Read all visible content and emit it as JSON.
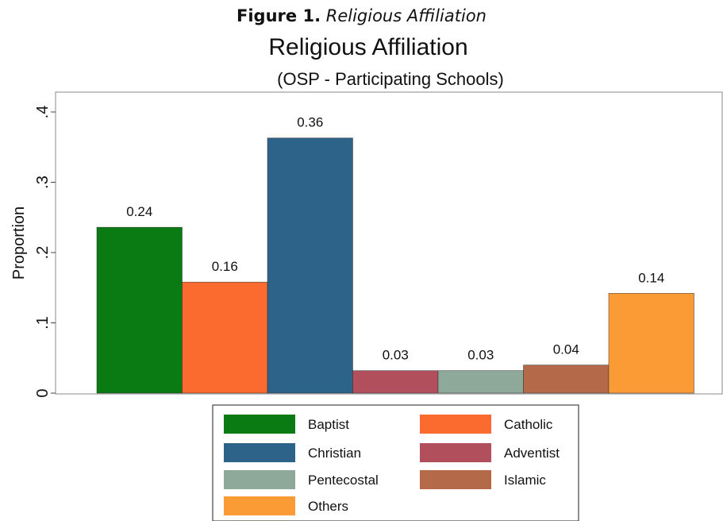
{
  "figure_caption": {
    "label": "Figure 1.",
    "title": "Religious Affiliation"
  },
  "chart_data": {
    "type": "bar",
    "title": "Religious Affiliation",
    "subtitle": "(OSP - Participating Schools)",
    "ylabel": "Proportion",
    "xlabel": "",
    "ylim": [
      0,
      0.4
    ],
    "yticks": [
      0,
      0.1,
      0.2,
      0.3,
      0.4
    ],
    "ytick_labels": [
      "0",
      ".1",
      ".2",
      ".3",
      ".4"
    ],
    "grid": false,
    "legend_placement": "bottom",
    "series": [
      {
        "name": "Baptist",
        "value": 0.236,
        "label": "0.24",
        "color": "#0a7a12"
      },
      {
        "name": "Catholic",
        "value": 0.158,
        "label": "0.16",
        "color": "#fb6a2e"
      },
      {
        "name": "Christian",
        "value": 0.363,
        "label": "0.36",
        "color": "#2d6388"
      },
      {
        "name": "Adventist",
        "value": 0.032,
        "label": "0.03",
        "color": "#b24f5c"
      },
      {
        "name": "Pentecostal",
        "value": 0.032,
        "label": "0.03",
        "color": "#8ea89a"
      },
      {
        "name": "Islamic",
        "value": 0.04,
        "label": "0.04",
        "color": "#b46a48"
      },
      {
        "name": "Others",
        "value": 0.142,
        "label": "0.14",
        "color": "#fb9b36"
      }
    ]
  }
}
